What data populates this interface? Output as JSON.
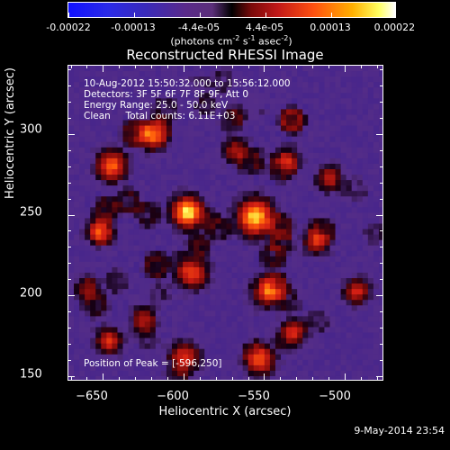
{
  "colorbar": {
    "labels": [
      "-0.00022",
      "-0.00013",
      "-4.4e-05",
      "4.4e-05",
      "0.00013",
      "0.00022"
    ],
    "units_main": "(photons cm",
    "units_sup1": "-2",
    "units_mid": " s",
    "units_sup2": "-1",
    "units_mid2": " asec",
    "units_sup3": "-2",
    "units_end": ")",
    "colors": [
      "#1010ff",
      "#000000",
      "#ff5010",
      "#ffffff"
    ]
  },
  "chart_data": {
    "type": "heatmap",
    "title": "Reconstructed RHESSI Image",
    "xlabel": "Heliocentric X (arcsec)",
    "ylabel": "Heliocentric Y (arcsec)",
    "xlim": [
      -672,
      -476
    ],
    "ylim": [
      147,
      343
    ],
    "x_ticks": [
      -650,
      -600,
      -550,
      -500
    ],
    "y_ticks": [
      150,
      200,
      250,
      300
    ],
    "x_tick_labels": [
      "−650",
      "−600",
      "−550",
      "−500"
    ],
    "y_tick_labels": [
      "150",
      "200",
      "250",
      "300"
    ],
    "value_range": [
      -0.00022,
      0.00022
    ],
    "peak": [
      -596,
      250
    ],
    "sources": [
      {
        "x": -598,
        "y": 252,
        "amp": 1.0,
        "r": 6
      },
      {
        "x": -556,
        "y": 249,
        "amp": 0.95,
        "r": 7
      },
      {
        "x": -645,
        "y": 281,
        "amp": 0.7,
        "r": 6
      },
      {
        "x": -620,
        "y": 300,
        "amp": 0.6,
        "r": 6
      },
      {
        "x": -653,
        "y": 240,
        "amp": 0.55,
        "r": 5
      },
      {
        "x": -647,
        "y": 172,
        "amp": 0.55,
        "r": 5
      },
      {
        "x": -625,
        "y": 185,
        "amp": 0.45,
        "r": 5
      },
      {
        "x": -600,
        "y": 162,
        "amp": 0.55,
        "r": 6
      },
      {
        "x": -595,
        "y": 214,
        "amp": 0.6,
        "r": 6
      },
      {
        "x": -548,
        "y": 203,
        "amp": 0.6,
        "r": 6
      },
      {
        "x": -553,
        "y": 160,
        "amp": 0.55,
        "r": 6
      },
      {
        "x": -532,
        "y": 178,
        "amp": 0.5,
        "r": 5
      },
      {
        "x": -518,
        "y": 234,
        "amp": 0.5,
        "r": 5
      },
      {
        "x": -536,
        "y": 284,
        "amp": 0.45,
        "r": 5
      },
      {
        "x": -510,
        "y": 273,
        "amp": 0.45,
        "r": 5
      },
      {
        "x": -493,
        "y": 203,
        "amp": 0.5,
        "r": 5
      },
      {
        "x": -568,
        "y": 290,
        "amp": 0.4,
        "r": 5
      },
      {
        "x": -660,
        "y": 205,
        "amp": 0.35,
        "r": 5
      }
    ],
    "info_lines": [
      "10-Aug-2012 15:50:32.000 to 15:56:12.000",
      "Detectors: 3F 5F 6F 7F 8F 9F, Att 0",
      "Energy Range: 25.0 - 50.0 keV",
      "Clean     Total counts: 6.11E+03"
    ],
    "peak_label": "Position of Peak = [-596,250]"
  },
  "footer": {
    "timestamp": "9-May-2014 23:54"
  }
}
